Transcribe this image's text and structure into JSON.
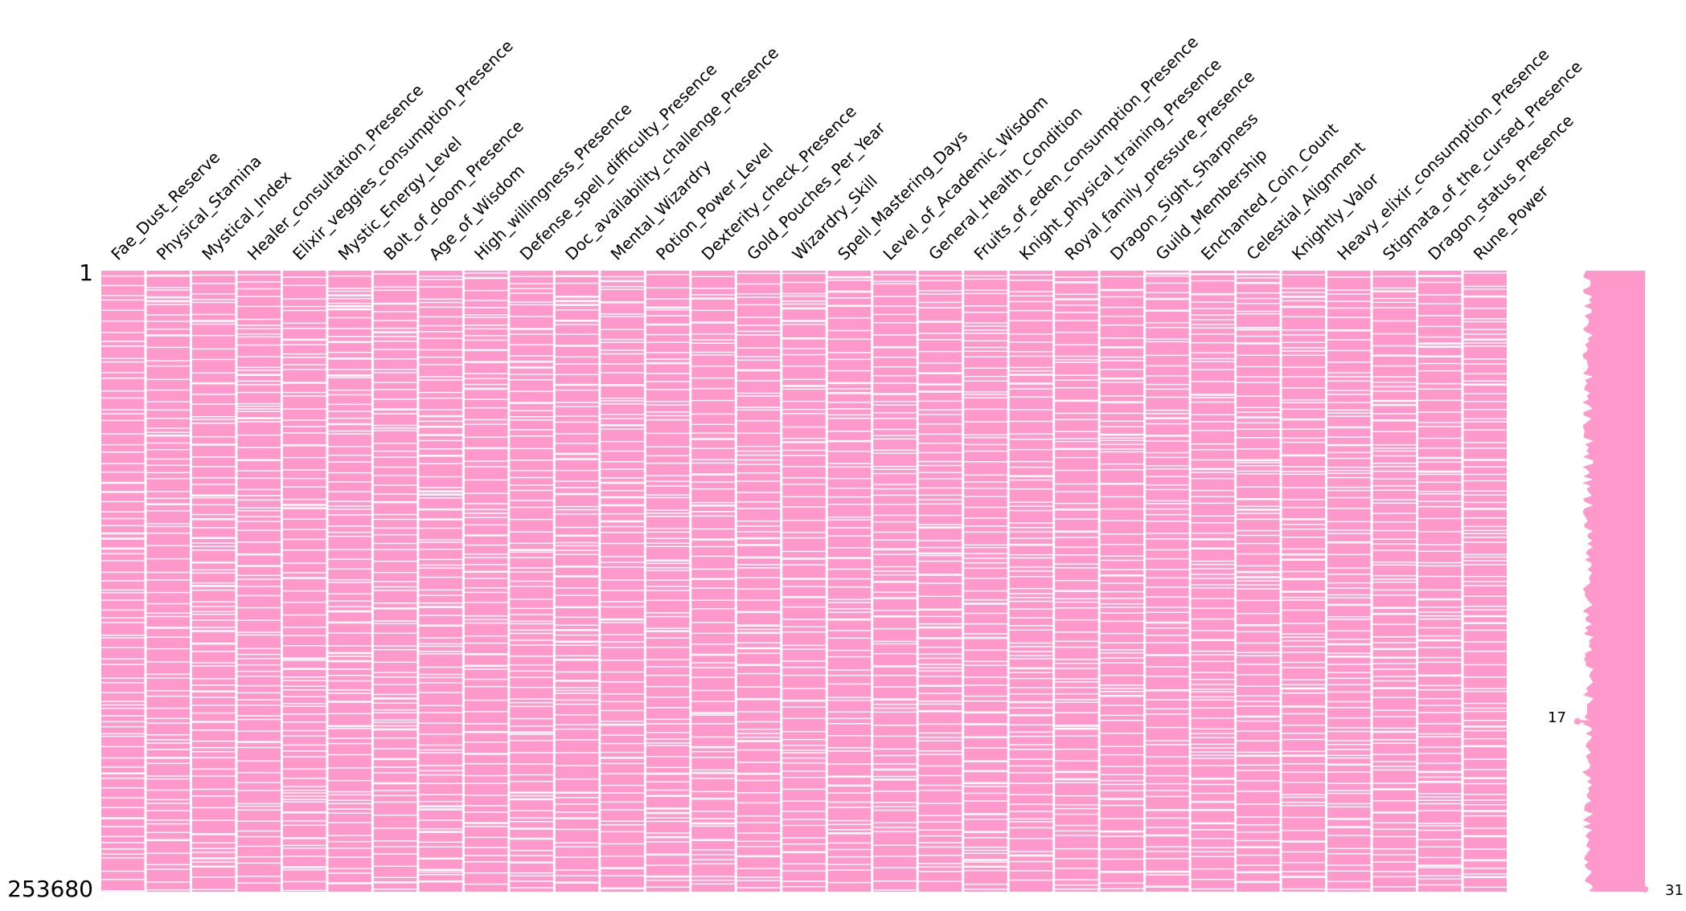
{
  "chart_data": {
    "type": "heatmap",
    "subtype": "missingness-matrix",
    "colors": {
      "filled": "#ff99cc",
      "missing": "#ffffff",
      "text": "#000000"
    },
    "row_range_labels": {
      "top": "1",
      "bottom": "253680"
    },
    "sparkline_labels": {
      "min": "17",
      "max": "31"
    },
    "columns": [
      "Fae_Dust_Reserve",
      "Physical_Stamina",
      "Mystical_Index",
      "Healer_consultation_Presence",
      "Elixir_veggies_consumption_Presence",
      "Mystic_Energy_Level",
      "Bolt_of_doom_Presence",
      "Age_of_Wisdom",
      "High_willingness_Presence",
      "Defense_spell_difficulty_Presence",
      "Doc_availability_challenge_Presence",
      "Mental_Wizardry",
      "Potion_Power_Level",
      "Dexterity_check_Presence",
      "Gold_Pouches_Per_Year",
      "Wizardry_Skill",
      "Spell_Mastering_Days",
      "Level_of_Academic_Wisdom",
      "General_Health_Condition",
      "Fruits_of_eden_consumption_Presence",
      "Knight_physical_training_Presence",
      "Royal_family_pressure_Presence",
      "Dragon_Sight_Sharpness",
      "Guild_Membership",
      "Enchanted_Coin_Count",
      "Celestial_Alignment",
      "Knightly_Valor",
      "Heavy_elixir_consumption_Presence",
      "Stigmata_of_the_cursed_Presence",
      "Dragon_status_Presence",
      "Rune_Power"
    ]
  }
}
